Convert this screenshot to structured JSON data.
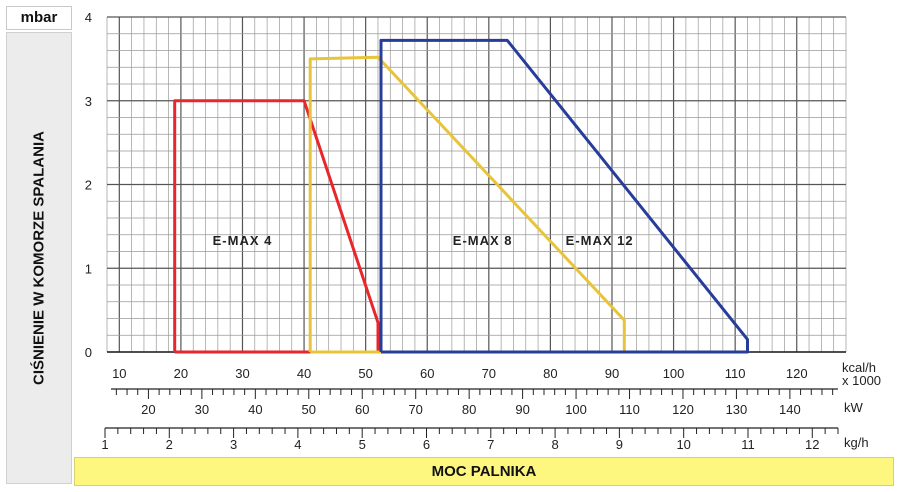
{
  "chart_data": {
    "type": "line",
    "title": "",
    "ylabel": "CIŚNIENIE W KOMORZE SPALANIA",
    "yunit": "mbar",
    "xlabel": "MOC PALNIKA",
    "ylim": [
      0,
      4
    ],
    "yticks": [
      0,
      1,
      2,
      3,
      4
    ],
    "grid": true,
    "axes": [
      {
        "unit": "kcal/h x 1000",
        "ticks": [
          10,
          20,
          30,
          40,
          50,
          60,
          70,
          80,
          90,
          100,
          110,
          120
        ]
      },
      {
        "unit": "kW",
        "ticks": [
          20,
          30,
          40,
          50,
          60,
          70,
          80,
          90,
          100,
          110,
          120,
          130,
          140
        ]
      },
      {
        "unit": "kg/h",
        "ticks": [
          1,
          2,
          3,
          4,
          5,
          6,
          7,
          8,
          9,
          10,
          11,
          12
        ]
      }
    ],
    "series": [
      {
        "name": "E-MAX 4",
        "color": "#e8262c",
        "points": [
          [
            19,
            0
          ],
          [
            19,
            3.0
          ],
          [
            40,
            3.0
          ],
          [
            52,
            0.35
          ],
          [
            52,
            0
          ],
          [
            19,
            0
          ]
        ]
      },
      {
        "name": "E-MAX 8",
        "color": "#e8c43a",
        "points": [
          [
            41,
            0
          ],
          [
            41,
            3.5
          ],
          [
            52,
            3.52
          ],
          [
            92,
            0.38
          ],
          [
            92,
            0
          ],
          [
            41,
            0
          ]
        ]
      },
      {
        "name": "E-MAX 12",
        "color": "#283c9a",
        "points": [
          [
            52.5,
            0
          ],
          [
            52.5,
            3.72
          ],
          [
            73,
            3.72
          ],
          [
            112,
            0.15
          ],
          [
            112,
            0
          ],
          [
            52.5,
            0
          ]
        ]
      }
    ]
  }
}
